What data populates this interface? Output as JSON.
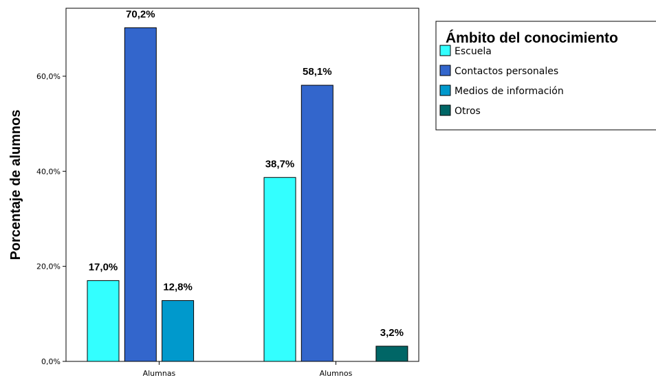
{
  "chart_data": {
    "type": "bar",
    "ylabel": "Porcentaje de alumnos",
    "xlabel": "",
    "ylim": [
      0,
      74.3
    ],
    "yticks": [
      0,
      20,
      40,
      60
    ],
    "ytick_labels": [
      "0,0%",
      "20,0%",
      "40,0%",
      "60,0%"
    ],
    "grid": false,
    "categories": [
      "Alumnas",
      "Alumnos"
    ],
    "legend": {
      "title": "Ámbito del conocimiento",
      "placement": "right"
    },
    "series": [
      {
        "name": "Escuela",
        "color": "#33FFFF",
        "values": [
          17.0,
          38.7
        ],
        "labels": [
          "17,0%",
          "38,7%"
        ]
      },
      {
        "name": "Contactos personales",
        "color": "#3366CC",
        "values": [
          70.2,
          58.1
        ],
        "labels": [
          "70,2%",
          "58,1%"
        ]
      },
      {
        "name": "Medios de información",
        "color": "#0099CC",
        "values": [
          12.8,
          0
        ],
        "labels": [
          "12,8%",
          ""
        ]
      },
      {
        "name": "Otros",
        "color": "#006666",
        "values": [
          0,
          3.2
        ],
        "labels": [
          "",
          "3,2%"
        ]
      }
    ]
  }
}
